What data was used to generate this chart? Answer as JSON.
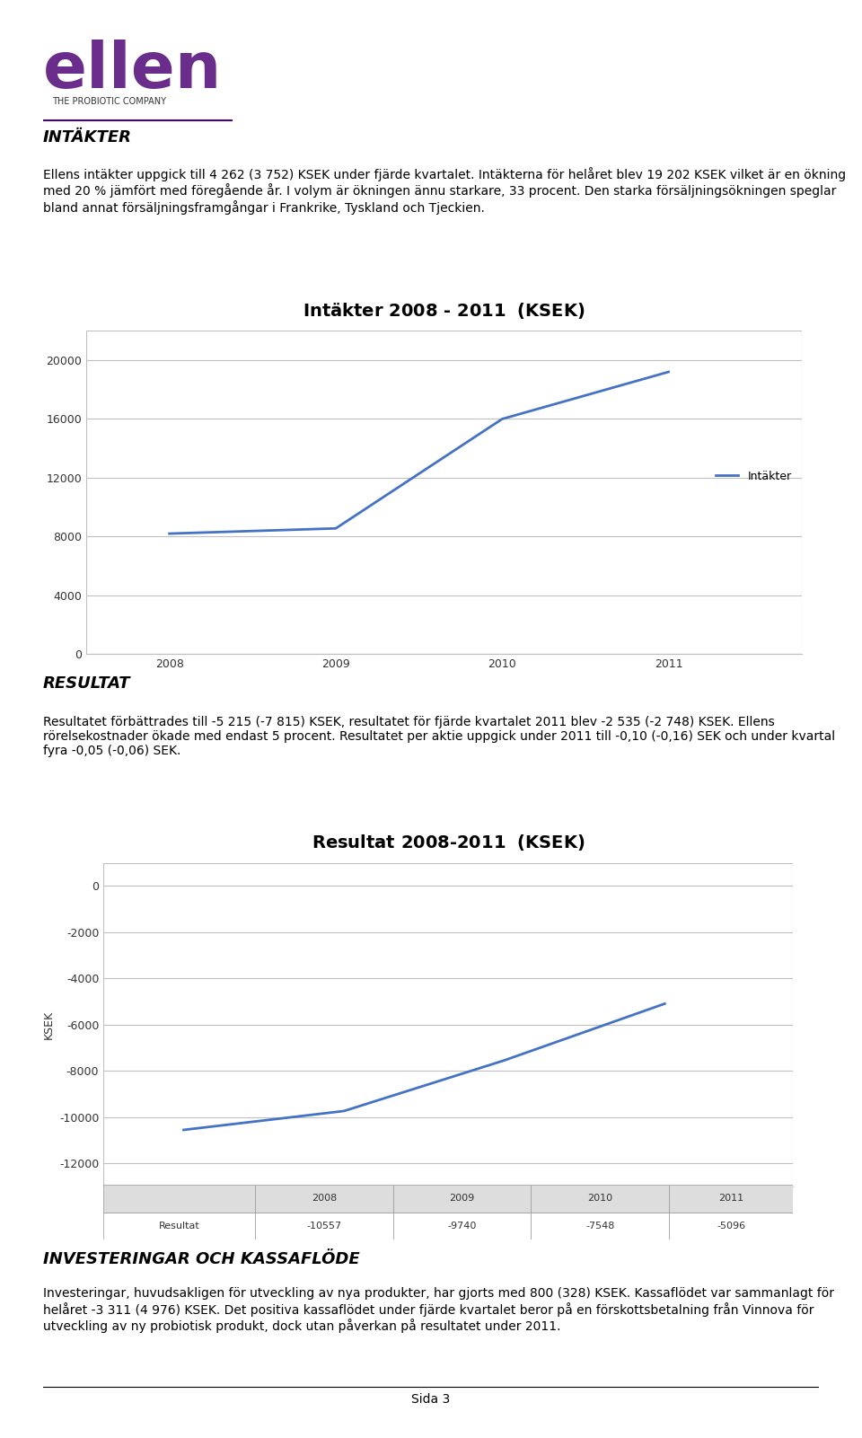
{
  "page_bg": "#ffffff",
  "ellen_logo_text": "ellen",
  "ellen_logo_color": "#6B2D8B",
  "ellen_subtitle": "THE PROBIOTIC COMPANY",
  "section1_title": "INTÄKTER",
  "section1_body": "Ellens intäkter uppgick till 4 262 (3 752) KSEK under fjärde kvartalet. Intäkterna för helåret blev 19 202 KSEK vilket är en ökning med 20 % jämfört med föregående år. I volym är ökningen ännu starkare, 33 procent. Den starka försäljningsökningen speglar bland annat försäljningsframgångar i Frankrike, Tyskland och Tjeckien.",
  "chart1_title": "Intäkter 2008 - 2011",
  "chart1_title_suffix": " (KSEK)",
  "chart1_years": [
    2008,
    2009,
    2010,
    2011
  ],
  "chart1_values": [
    8206,
    8560,
    16000,
    19202
  ],
  "chart1_ylim": [
    0,
    22000
  ],
  "chart1_yticks": [
    0,
    4000,
    8000,
    12000,
    16000,
    20000
  ],
  "chart1_line_color": "#4472C4",
  "chart1_legend": "Intäkter",
  "chart1_grid_color": "#C0C0C0",
  "section2_title": "RESULTAT",
  "section2_body": "Resultatet förbättrades till -5 215 (-7 815) KSEK, resultatet för fjärde kvartalet 2011 blev -2 535 (-2 748) KSEK. Ellens rörelsekostnader ökade med endast 5 procent. Resultatet per aktie uppgick under 2011 till -0,10 (-0,16) SEK och under kvartal fyra -0,05 (-0,06) SEK.",
  "chart2_title": "Resultat 2008-2011",
  "chart2_title_suffix": " (KSEK)",
  "chart2_years": [
    2008,
    2009,
    2010,
    2011
  ],
  "chart2_values": [
    -10557,
    -9740,
    -7548,
    -5096
  ],
  "chart2_ylim": [
    -13000,
    1000
  ],
  "chart2_yticks": [
    0,
    -2000,
    -4000,
    -6000,
    -8000,
    -10000,
    -12000
  ],
  "chart2_line_color": "#4472C4",
  "chart2_ylabel": "KSEK",
  "chart2_grid_color": "#C0C0C0",
  "chart2_table_labels": [
    "Resultat",
    "-10557",
    "-9740",
    "-7548",
    "-5096"
  ],
  "chart2_table_years": [
    "",
    "2008",
    "2009",
    "2010",
    "2011"
  ],
  "section3_title": "INVESTERINGAR OCH KASSAFLÖDE",
  "section3_body": "Investeringar, huvudsakligen för utveckling av nya produkter, har gjorts med 800 (328) KSEK. Kassaflödet var sammanlagt för helåret -3 311 (4 976) KSEK. Det positiva kassaflödet under fjärde kvartalet beror på en förskottsbetalning från Vinnova för utveckling av ny probiotisk produkt, dock utan påverkan på resultatet under 2011.",
  "footer_text": "Sida 3",
  "footer_border_color": "#000000"
}
